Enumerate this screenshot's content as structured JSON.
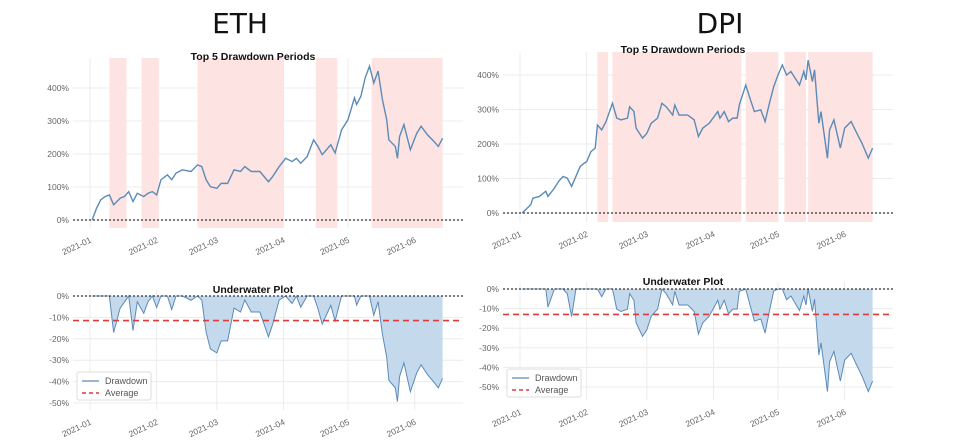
{
  "colors": {
    "line": "#5b8bb8",
    "drawdown_fill": "#c5d9ec",
    "shade": "#fde3e1",
    "average": "#e03a3a",
    "zero_line": "#333333",
    "grid": "#ececec"
  },
  "chart_data": [
    {
      "asset": "ETH",
      "type": "line",
      "title": "Top 5 Drawdown Periods",
      "ylim": [
        0,
        450
      ],
      "yticks": [
        0,
        100,
        200,
        300,
        400
      ],
      "ytick_labels": [
        "0%",
        "100%",
        "200%",
        "300%",
        "400%"
      ],
      "xtick_labels": [
        "2021-01",
        "2021-02",
        "2021-03",
        "2021-04",
        "2021-05",
        "2021-06"
      ],
      "grid": true,
      "drawdown_periods": [
        [
          "2021-01-10",
          "2021-01-18"
        ],
        [
          "2021-01-25",
          "2021-02-02"
        ],
        [
          "2021-02-20",
          "2021-04-01"
        ],
        [
          "2021-04-16",
          "2021-04-26"
        ],
        [
          "2021-05-12",
          "2021-06-14"
        ]
      ],
      "cumulative_returns_pct": [
        [
          "2021-01-02",
          0
        ],
        [
          "2021-01-04",
          35
        ],
        [
          "2021-01-06",
          61
        ],
        [
          "2021-01-08",
          71
        ],
        [
          "2021-01-10",
          76
        ],
        [
          "2021-01-12",
          46
        ],
        [
          "2021-01-15",
          66
        ],
        [
          "2021-01-17",
          71
        ],
        [
          "2021-01-19",
          86
        ],
        [
          "2021-01-21",
          56
        ],
        [
          "2021-01-23",
          81
        ],
        [
          "2021-01-26",
          71
        ],
        [
          "2021-01-28",
          81
        ],
        [
          "2021-01-30",
          86
        ],
        [
          "2021-02-01",
          76
        ],
        [
          "2021-02-03",
          122
        ],
        [
          "2021-02-06",
          137
        ],
        [
          "2021-02-08",
          122
        ],
        [
          "2021-02-10",
          142
        ],
        [
          "2021-02-13",
          152
        ],
        [
          "2021-02-17",
          147
        ],
        [
          "2021-02-20",
          167
        ],
        [
          "2021-02-22",
          162
        ],
        [
          "2021-02-24",
          122
        ],
        [
          "2021-02-26",
          101
        ],
        [
          "2021-03-01",
          96
        ],
        [
          "2021-03-03",
          111
        ],
        [
          "2021-03-06",
          111
        ],
        [
          "2021-03-09",
          152
        ],
        [
          "2021-03-12",
          147
        ],
        [
          "2021-03-14",
          162
        ],
        [
          "2021-03-17",
          147
        ],
        [
          "2021-03-21",
          147
        ],
        [
          "2021-03-25",
          116
        ],
        [
          "2021-03-27",
          132
        ],
        [
          "2021-03-30",
          162
        ],
        [
          "2021-04-02",
          187
        ],
        [
          "2021-04-05",
          177
        ],
        [
          "2021-04-07",
          187
        ],
        [
          "2021-04-09",
          172
        ],
        [
          "2021-04-12",
          192
        ],
        [
          "2021-04-15",
          243
        ],
        [
          "2021-04-17",
          223
        ],
        [
          "2021-04-19",
          198
        ],
        [
          "2021-04-23",
          228
        ],
        [
          "2021-04-25",
          203
        ],
        [
          "2021-04-28",
          273
        ],
        [
          "2021-05-01",
          304
        ],
        [
          "2021-05-04",
          370
        ],
        [
          "2021-05-05",
          350
        ],
        [
          "2021-05-07",
          375
        ],
        [
          "2021-05-09",
          431
        ],
        [
          "2021-05-11",
          466
        ],
        [
          "2021-05-13",
          415
        ],
        [
          "2021-05-15",
          451
        ],
        [
          "2021-05-17",
          365
        ],
        [
          "2021-05-19",
          304
        ],
        [
          "2021-05-20",
          243
        ],
        [
          "2021-05-23",
          223
        ],
        [
          "2021-05-24",
          187
        ],
        [
          "2021-05-25",
          253
        ],
        [
          "2021-05-27",
          289
        ],
        [
          "2021-05-30",
          213
        ],
        [
          "2021-06-02",
          263
        ],
        [
          "2021-06-04",
          284
        ],
        [
          "2021-06-07",
          258
        ],
        [
          "2021-06-10",
          238
        ],
        [
          "2021-06-12",
          223
        ],
        [
          "2021-06-14",
          248
        ]
      ],
      "underwater": {
        "type": "area",
        "title": "Underwater Plot",
        "ylim": [
          -50,
          0
        ],
        "yticks": [
          0,
          -10,
          -20,
          -30,
          -40,
          -50
        ],
        "ytick_labels": [
          "0%",
          "-10%",
          "-20%",
          "-30%",
          "-40%",
          "-50%"
        ],
        "average_pct": -11.5,
        "legend": [
          "Drawdown",
          "Average"
        ],
        "legend_position": "lower-left"
      }
    },
    {
      "asset": "DPI",
      "type": "line",
      "title": "Top 5 Drawdown Periods",
      "ylim": [
        0,
        440
      ],
      "yticks": [
        0,
        100,
        200,
        300,
        400
      ],
      "ytick_labels": [
        "0%",
        "100%",
        "200%",
        "300%",
        "400%"
      ],
      "xtick_labels": [
        "2021-01",
        "2021-02",
        "2021-03",
        "2021-04",
        "2021-05",
        "2021-06"
      ],
      "grid": true,
      "drawdown_periods": [
        [
          "2021-02-06",
          "2021-02-11"
        ],
        [
          "2021-02-13",
          "2021-04-14"
        ],
        [
          "2021-04-16",
          "2021-05-01"
        ],
        [
          "2021-05-04",
          "2021-05-14"
        ],
        [
          "2021-05-15",
          "2021-06-14"
        ]
      ],
      "cumulative_returns_pct": [
        [
          "2021-01-02",
          0
        ],
        [
          "2021-01-06",
          24
        ],
        [
          "2021-01-07",
          43
        ],
        [
          "2021-01-10",
          48
        ],
        [
          "2021-01-13",
          63
        ],
        [
          "2021-01-14",
          48
        ],
        [
          "2021-01-17",
          72
        ],
        [
          "2021-01-19",
          92
        ],
        [
          "2021-01-21",
          106
        ],
        [
          "2021-01-23",
          101
        ],
        [
          "2021-01-25",
          77
        ],
        [
          "2021-01-27",
          106
        ],
        [
          "2021-01-29",
          135
        ],
        [
          "2021-01-31",
          145
        ],
        [
          "2021-02-01",
          149
        ],
        [
          "2021-02-03",
          178
        ],
        [
          "2021-02-05",
          188
        ],
        [
          "2021-02-06",
          255
        ],
        [
          "2021-02-08",
          241
        ],
        [
          "2021-02-10",
          265
        ],
        [
          "2021-02-13",
          318
        ],
        [
          "2021-02-15",
          275
        ],
        [
          "2021-02-17",
          270
        ],
        [
          "2021-02-20",
          275
        ],
        [
          "2021-02-21",
          308
        ],
        [
          "2021-02-23",
          294
        ],
        [
          "2021-02-24",
          246
        ],
        [
          "2021-02-27",
          217
        ],
        [
          "2021-03-01",
          231
        ],
        [
          "2021-03-03",
          260
        ],
        [
          "2021-03-06",
          275
        ],
        [
          "2021-03-08",
          318
        ],
        [
          "2021-03-10",
          308
        ],
        [
          "2021-03-13",
          284
        ],
        [
          "2021-03-14",
          313
        ],
        [
          "2021-03-16",
          284
        ],
        [
          "2021-03-20",
          284
        ],
        [
          "2021-03-23",
          270
        ],
        [
          "2021-03-25",
          222
        ],
        [
          "2021-03-27",
          246
        ],
        [
          "2021-03-30",
          260
        ],
        [
          "2021-04-03",
          294
        ],
        [
          "2021-04-04",
          275
        ],
        [
          "2021-04-06",
          294
        ],
        [
          "2021-04-08",
          265
        ],
        [
          "2021-04-10",
          275
        ],
        [
          "2021-04-12",
          275
        ],
        [
          "2021-04-13",
          313
        ],
        [
          "2021-04-16",
          371
        ],
        [
          "2021-04-18",
          332
        ],
        [
          "2021-04-20",
          294
        ],
        [
          "2021-04-23",
          299
        ],
        [
          "2021-04-25",
          265
        ],
        [
          "2021-04-27",
          318
        ],
        [
          "2021-04-29",
          366
        ],
        [
          "2021-05-01",
          400
        ],
        [
          "2021-05-03",
          429
        ],
        [
          "2021-05-05",
          400
        ],
        [
          "2021-05-07",
          410
        ],
        [
          "2021-05-11",
          371
        ],
        [
          "2021-05-13",
          410
        ],
        [
          "2021-05-14",
          386
        ],
        [
          "2021-05-15",
          443
        ],
        [
          "2021-05-17",
          381
        ],
        [
          "2021-05-18",
          415
        ],
        [
          "2021-05-20",
          260
        ],
        [
          "2021-05-21",
          294
        ],
        [
          "2021-05-24",
          159
        ],
        [
          "2021-05-25",
          241
        ],
        [
          "2021-05-27",
          270
        ],
        [
          "2021-05-30",
          188
        ],
        [
          "2021-06-01",
          246
        ],
        [
          "2021-06-04",
          265
        ],
        [
          "2021-06-07",
          227
        ],
        [
          "2021-06-09",
          203
        ],
        [
          "2021-06-12",
          159
        ],
        [
          "2021-06-14",
          188
        ]
      ],
      "underwater": {
        "type": "area",
        "title": "Underwater Plot",
        "ylim": [
          -53,
          0
        ],
        "yticks": [
          0,
          -10,
          -20,
          -30,
          -40,
          -50
        ],
        "ytick_labels": [
          "0%",
          "-10%",
          "-20%",
          "-30%",
          "-40%",
          "-50%"
        ],
        "average_pct": -13,
        "legend": [
          "Drawdown",
          "Average"
        ],
        "legend_position": "lower-left"
      }
    }
  ]
}
